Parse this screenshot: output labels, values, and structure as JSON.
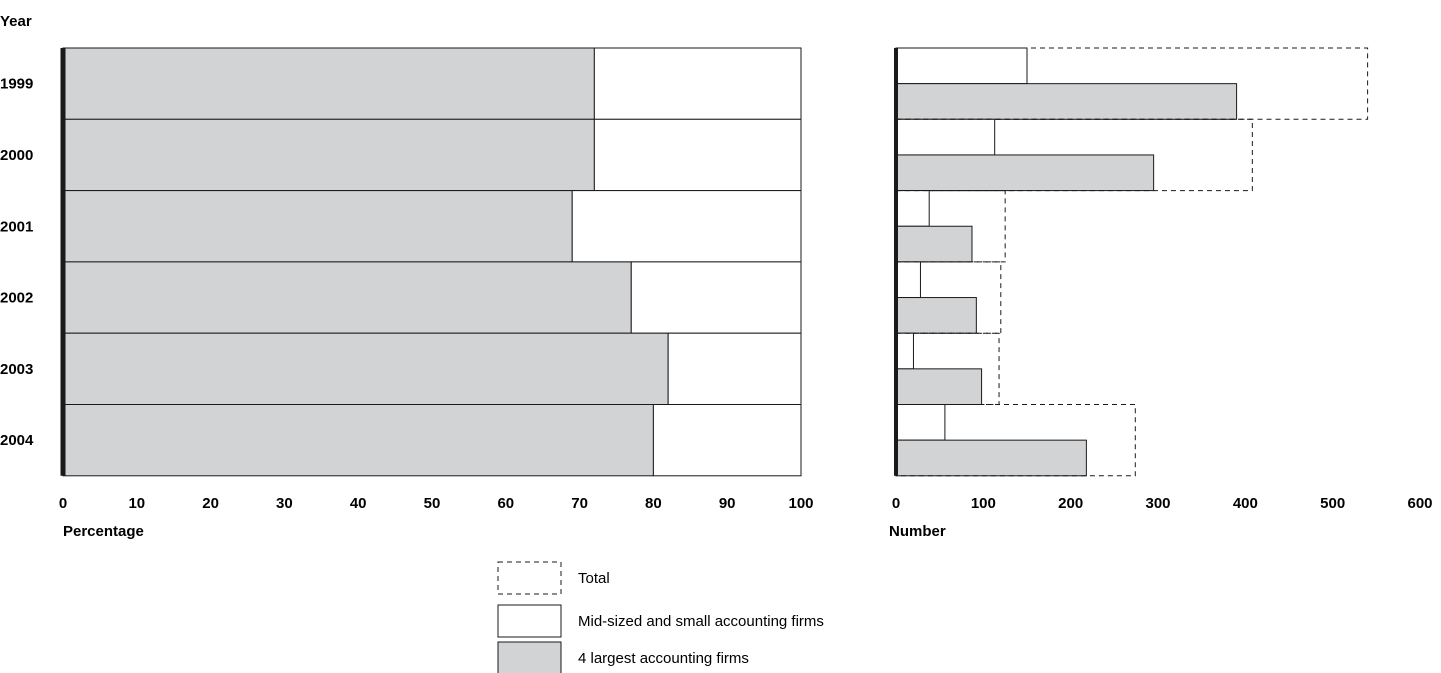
{
  "chart_data": [
    {
      "type": "bar",
      "orientation": "horizontal",
      "stacked": true,
      "categories_label": "Year",
      "categories": [
        "1999",
        "2000",
        "2001",
        "2002",
        "2003",
        "2004"
      ],
      "xlabel": "Percentage",
      "xlim": [
        0,
        100
      ],
      "xticks": [
        "0",
        "10",
        "20",
        "30",
        "40",
        "50",
        "60",
        "70",
        "80",
        "90",
        "100"
      ],
      "series": [
        {
          "name": "4 largest accounting firms",
          "values": [
            72,
            72,
            69,
            77,
            82,
            80
          ]
        },
        {
          "name": "Mid-sized and small accounting firms",
          "values": [
            28,
            28,
            31,
            23,
            18,
            20
          ]
        }
      ]
    },
    {
      "type": "bar",
      "orientation": "horizontal",
      "categories": [
        "1999",
        "2000",
        "2001",
        "2002",
        "2003",
        "2004"
      ],
      "xlabel": "Number",
      "xlim": [
        0,
        600
      ],
      "xticks": [
        "0",
        "100",
        "200",
        "300",
        "400",
        "500",
        "600"
      ],
      "series": [
        {
          "name": "Total",
          "values": [
            540,
            408,
            125,
            120,
            118,
            274
          ]
        },
        {
          "name": "Mid-sized and small accounting firms",
          "values": [
            150,
            113,
            38,
            28,
            20,
            56
          ]
        },
        {
          "name": "4 largest accounting firms",
          "values": [
            390,
            295,
            87,
            92,
            98,
            218
          ]
        }
      ]
    }
  ],
  "legend": {
    "items": [
      {
        "label": "Total",
        "style": "dashed"
      },
      {
        "label": "Mid-sized and small accounting firms",
        "style": "white"
      },
      {
        "label": "4 largest accounting firms",
        "style": "gray"
      }
    ]
  },
  "colors": {
    "gray": "#d2d3d5",
    "stroke": "#1a1a1a",
    "white": "#ffffff"
  }
}
